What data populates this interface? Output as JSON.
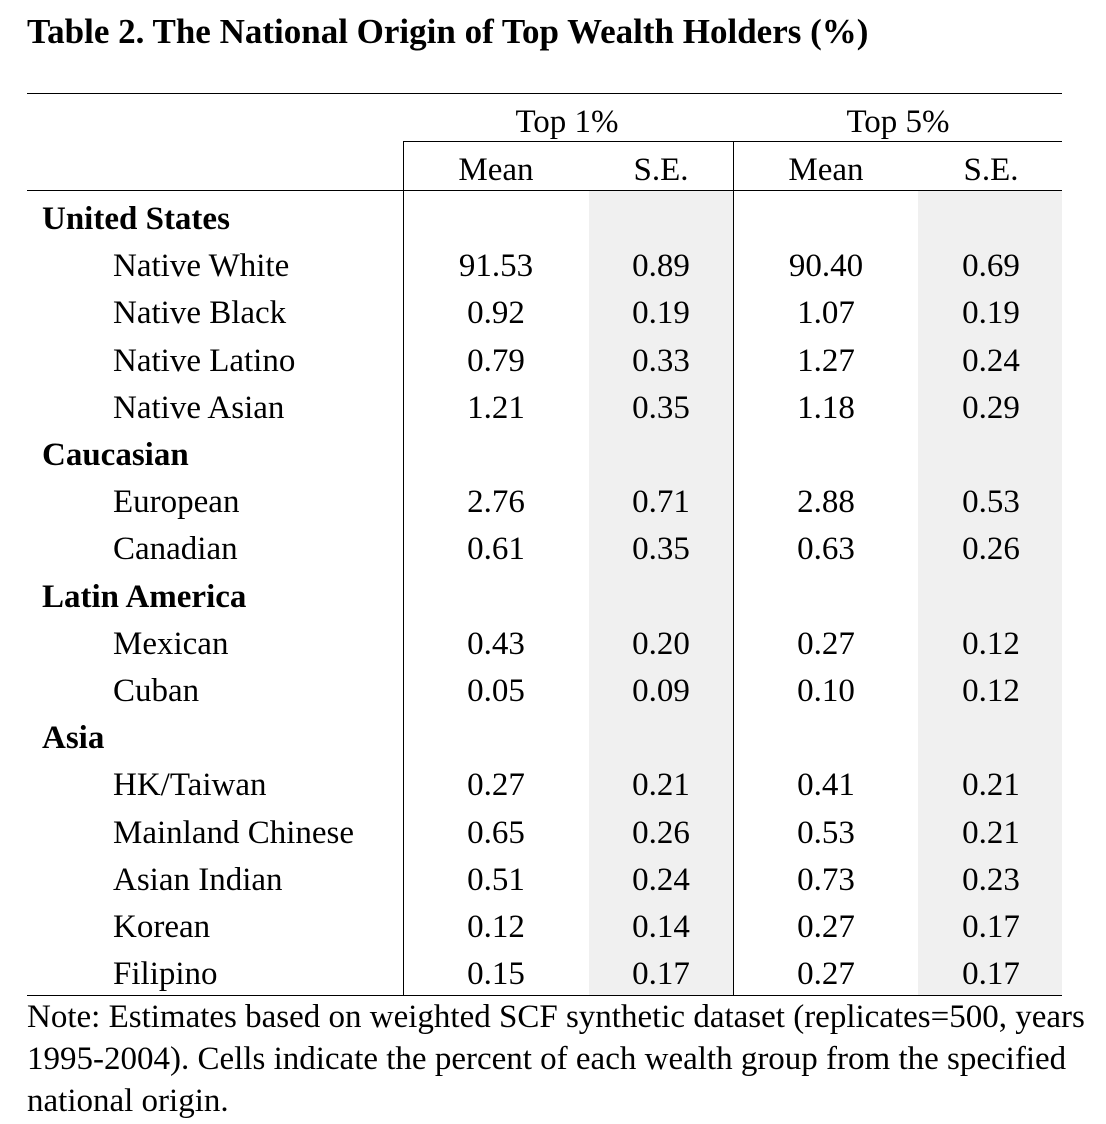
{
  "title": "Table 2. The National Origin of Top Wealth Holders (%)",
  "column_groups": [
    {
      "label": "Top 1%",
      "columns": [
        "Mean",
        "S.E."
      ]
    },
    {
      "label": "Top 5%",
      "columns": [
        "Mean",
        "S.E."
      ]
    }
  ],
  "groups": [
    {
      "name": "United States",
      "rows": [
        {
          "label": "Native White",
          "values": [
            "91.53",
            "0.89",
            "90.40",
            "0.69"
          ]
        },
        {
          "label": "Native Black",
          "values": [
            "0.92",
            "0.19",
            "1.07",
            "0.19"
          ]
        },
        {
          "label": "Native Latino",
          "values": [
            "0.79",
            "0.33",
            "1.27",
            "0.24"
          ]
        },
        {
          "label": "Native Asian",
          "values": [
            "1.21",
            "0.35",
            "1.18",
            "0.29"
          ]
        }
      ]
    },
    {
      "name": "Caucasian",
      "rows": [
        {
          "label": "European",
          "values": [
            "2.76",
            "0.71",
            "2.88",
            "0.53"
          ]
        },
        {
          "label": "Canadian",
          "values": [
            "0.61",
            "0.35",
            "0.63",
            "0.26"
          ]
        }
      ]
    },
    {
      "name": "Latin America",
      "rows": [
        {
          "label": "Mexican",
          "values": [
            "0.43",
            "0.20",
            "0.27",
            "0.12"
          ]
        },
        {
          "label": "Cuban",
          "values": [
            "0.05",
            "0.09",
            "0.10",
            "0.12"
          ]
        }
      ]
    },
    {
      "name": "Asia",
      "rows": [
        {
          "label": "HK/Taiwan",
          "values": [
            "0.27",
            "0.21",
            "0.41",
            "0.21"
          ]
        },
        {
          "label": "Mainland Chinese",
          "values": [
            "0.65",
            "0.26",
            "0.53",
            "0.21"
          ]
        },
        {
          "label": "Asian Indian",
          "values": [
            "0.51",
            "0.24",
            "0.73",
            "0.23"
          ]
        },
        {
          "label": "Korean",
          "values": [
            "0.12",
            "0.14",
            "0.27",
            "0.17"
          ]
        },
        {
          "label": "Filipino",
          "values": [
            "0.15",
            "0.17",
            "0.27",
            "0.17"
          ]
        }
      ]
    }
  ],
  "note": "Note: Estimates based on weighted SCF synthetic dataset (replicates=500, years 1995-2004). Cells indicate the percent of each wealth group from the specified national origin."
}
